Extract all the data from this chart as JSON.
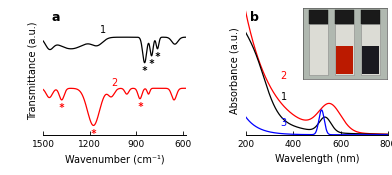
{
  "panel_a": {
    "title": "a",
    "xlabel": "Wavenumber (cm⁻¹)",
    "ylabel": "Transmittance (a.u.)",
    "xticks": [
      1500,
      1200,
      900,
      600
    ],
    "xtick_labels": [
      "1500",
      "1200",
      "900",
      "600"
    ]
  },
  "panel_b": {
    "title": "b",
    "xlabel": "Wavelength (nm)",
    "ylabel": "Absorbance (a.u.)",
    "xticks": [
      200,
      400,
      600,
      800
    ],
    "xtick_labels": [
      "200",
      "400",
      "600",
      "800"
    ]
  },
  "curve1_color": "black",
  "curve2_color": "red",
  "curve3_color": "blue",
  "background": "white",
  "tick_label_size": 6.5,
  "axis_label_size": 7,
  "panel_label_size": 9
}
